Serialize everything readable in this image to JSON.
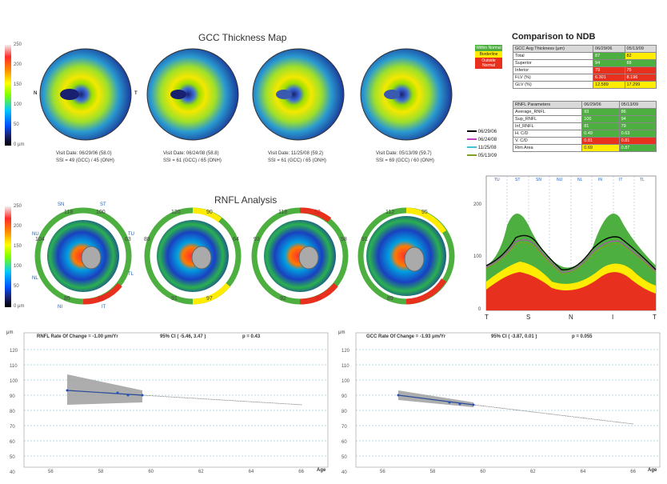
{
  "gcc": {
    "title": "GCC Thickness Map",
    "scale": {
      "top": "250",
      "t200": "200",
      "t150": "150",
      "t100": "100",
      "t50": "50",
      "bottom": "0 μm"
    },
    "n_label": "N",
    "t_label": "T",
    "maps": [
      {
        "visit": "Visit Date: 06/29/06 (58.0)",
        "ssi": "SSI = 49 (GCC) / 45 (ONH)"
      },
      {
        "visit": "Visit Date: 06/24/08 (58.8)",
        "ssi": "SSI = 61 (GCC) / 65 (ONH)"
      },
      {
        "visit": "Visit Date: 11/25/08 (59.2)",
        "ssi": "SSI = 61 (GCC) / 65 (ONH)"
      },
      {
        "visit": "Visit Date: 05/13/09 (59.7)",
        "ssi": "SSI = 69 (GCC) / 60 (ONH)"
      }
    ]
  },
  "ndb": {
    "title": "Comparison to NDB",
    "legend": [
      "Within Normal",
      "Borderline",
      "Outside Normal"
    ],
    "gcc_header": [
      "GCC Avg Thickness (μm)",
      "06/29/06",
      "05/13/09"
    ],
    "gcc_rows": [
      {
        "label": "Total",
        "v1": "87",
        "v2": "82"
      },
      {
        "label": "Superior",
        "v1": "94",
        "v2": "88"
      },
      {
        "label": "Inferior",
        "v1": "79",
        "v2": "75"
      },
      {
        "label": "FLV (%)",
        "v1": "6.301",
        "v2": "8.196"
      },
      {
        "label": "GLV (%)",
        "v1": "12.589",
        "v2": "17.299"
      }
    ],
    "rnfl_header": [
      "RNFL Parameters",
      "06/29/06",
      "05/13/09"
    ],
    "rnfl_rows": [
      {
        "label": "Average_RNFL",
        "v1": "93",
        "v2": "86"
      },
      {
        "label": "Sup_RNFL",
        "v1": "106",
        "v2": "94"
      },
      {
        "label": "Inf_RNFL",
        "v1": "81",
        "v2": "79"
      },
      {
        "label": "H. C/D",
        "v1": "0.49",
        "v2": "0.63"
      },
      {
        "label": "V. C/D",
        "v1": "0.81",
        "v2": "0.81"
      },
      {
        "label": "Rim Area",
        "v1": "0.69",
        "v2": "0.87"
      }
    ],
    "dates_legend": [
      "06/29/06",
      "06/24/08",
      "11/25/08",
      "05/13/09"
    ],
    "colors": {
      "within": "#4caf3f",
      "borderline": "#ffec00",
      "outside": "#e8301f"
    }
  },
  "rnfl": {
    "title": "RNFL Analysis",
    "scale": {
      "top": "250",
      "t200": "200",
      "t150": "150",
      "t100": "100",
      "t50": "50",
      "bottom": "0 μm"
    },
    "quad_labels": {
      "sn": "SN",
      "st": "ST",
      "tu": "TU",
      "tl": "TL",
      "ni": "NI",
      "it": "IT",
      "nu": "NU",
      "nl": "NL"
    },
    "maps": [
      {
        "top_l": "118",
        "top_r": "100",
        "left": "104",
        "right": "63",
        "bot_l": "85",
        "bot_r": "81"
      },
      {
        "top_l": "120",
        "top_r": "90",
        "left": "88",
        "right": "64",
        "bot_l": "91",
        "bot_r": "97"
      },
      {
        "top_l": "118",
        "top_r": "92",
        "left": "93",
        "right": "58",
        "bot_l": "92",
        "bot_r": "95"
      },
      {
        "top_l": "112",
        "top_r": "95",
        "left": "91",
        "right": "",
        "bot_l": "89",
        "bot_r": ""
      }
    ]
  },
  "tsnit": {
    "segments": [
      "TU",
      "ST",
      "SN",
      "NU",
      "NL",
      "IN",
      "IT",
      "TL"
    ],
    "y_ticks": [
      "200",
      "100",
      "0"
    ],
    "x_labels": [
      "T",
      "S",
      "N",
      "I",
      "T"
    ]
  },
  "rnfl_trend": {
    "title": "RNFL Rate Of Change = -1.00 μm/Yr",
    "ci": "95% CI ( -5.46, 3.47 )",
    "p": "p = 0.43",
    "unit": "μm",
    "y_ticks": [
      "120",
      "110",
      "100",
      "90",
      "80",
      "70",
      "60",
      "50",
      "40"
    ],
    "x_ticks": [
      "56",
      "58",
      "60",
      "62",
      "64",
      "66"
    ],
    "x_label": "Age"
  },
  "gcc_trend": {
    "title": "GCC Rate Of Change = -1.93 μm/Yr",
    "ci": "95% CI ( -3.87, 0.01 )",
    "p": "p = 0.055",
    "unit": "μm",
    "y_ticks": [
      "120",
      "110",
      "100",
      "90",
      "80",
      "70",
      "60",
      "50",
      "40"
    ],
    "x_ticks": [
      "56",
      "58",
      "60",
      "62",
      "64",
      "66"
    ],
    "x_label": "Age"
  }
}
